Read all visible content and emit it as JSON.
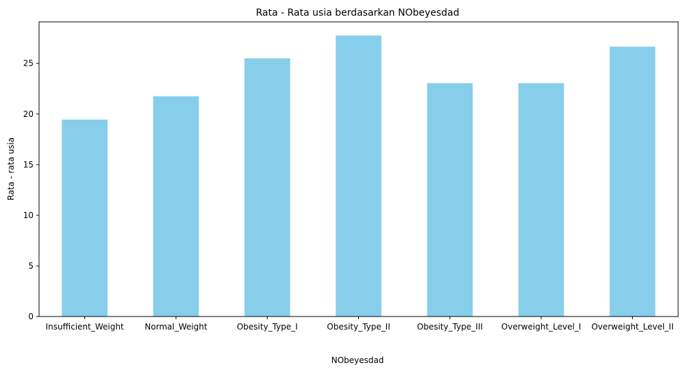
{
  "chart_data": {
    "type": "bar",
    "title": "Rata - Rata usia berdasarkan NObeyesdad",
    "xlabel": "NObeyesdad",
    "ylabel": "Rata - rata usia",
    "categories": [
      "Insufficient_Weight",
      "Normal_Weight",
      "Obesity_Type_I",
      "Obesity_Type_II",
      "Obesity_Type_III",
      "Overweight_Level_I",
      "Overweight_Level_II"
    ],
    "values": [
      19.45,
      21.75,
      25.5,
      27.75,
      23.05,
      23.05,
      26.65
    ],
    "ylim": [
      0,
      29.1
    ],
    "yticks": [
      0,
      5,
      10,
      15,
      20,
      25
    ],
    "grid": false,
    "bar_color": "#87ceeb"
  }
}
